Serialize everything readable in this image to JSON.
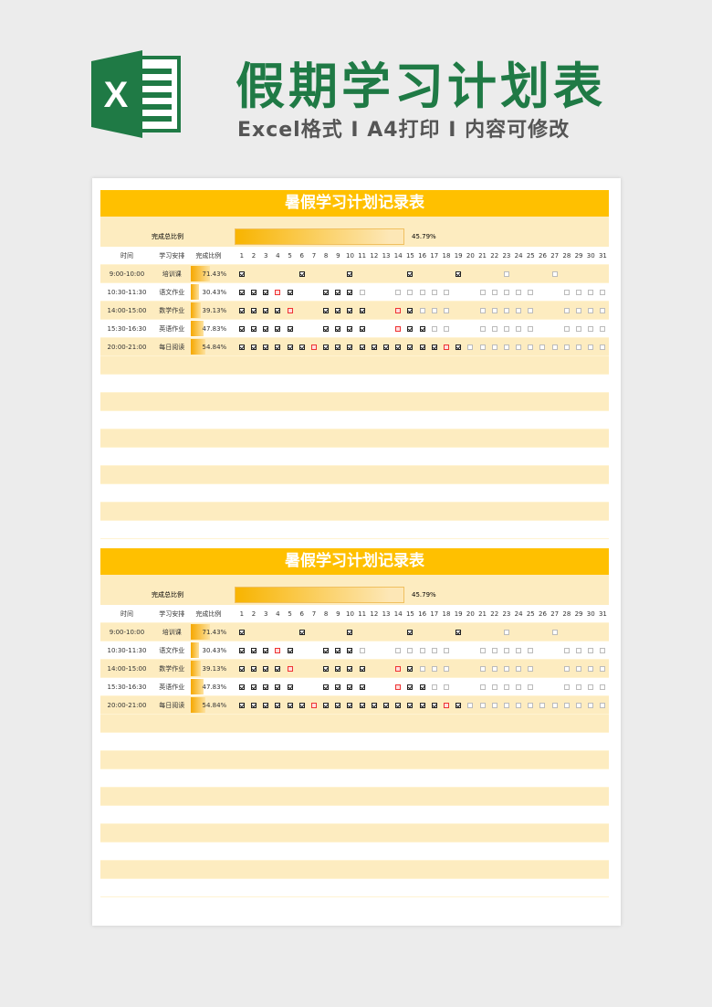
{
  "header": {
    "title": "假期学习计划表",
    "subtitle": "Excel格式 I A4打印 I 内容可修改",
    "logo_text": "X"
  },
  "table": {
    "title": "暑假学习计划记录表",
    "total_label": "完成总比例",
    "total_value": "45.79%",
    "total_fraction": 0.4579,
    "col_time": "时间",
    "col_subject": "学习安排",
    "col_ratio": "完成比例",
    "days": [
      "1",
      "2",
      "3",
      "4",
      "5",
      "6",
      "7",
      "8",
      "9",
      "10",
      "11",
      "12",
      "13",
      "14",
      "15",
      "16",
      "17",
      "18",
      "19",
      "20",
      "21",
      "22",
      "23",
      "24",
      "25",
      "26",
      "27",
      "28",
      "29",
      "30",
      "31"
    ],
    "legend": {
      "v": "checked",
      "x": "missed",
      "o": "unchecked"
    },
    "rows": [
      {
        "time": "9:00-10:00",
        "subject": "培训课",
        "ratio": "71.43%",
        "fraction": 0.7143,
        "marks": "v    v   v    v   v   o   o    "
      },
      {
        "time": "10:30-11:30",
        "subject": "语文作业",
        "ratio": "30.43%",
        "fraction": 0.3043,
        "marks": "vvvxv  vvvo  ooooo  ooooo  oooo"
      },
      {
        "time": "14:00-15:00",
        "subject": "数学作业",
        "ratio": "39.13%",
        "fraction": 0.3913,
        "marks": "vvvvx  vvvv  xvooo  ooooo  oooo"
      },
      {
        "time": "15:30-16:30",
        "subject": "英语作业",
        "ratio": "47.83%",
        "fraction": 0.4783,
        "marks": "vvvvv  vvvv  xvvoo  ooooo  oooo"
      },
      {
        "time": "20:00-21:00",
        "subject": "每日阅读",
        "ratio": "54.84%",
        "fraction": 0.5484,
        "marks": "vvvvvvxvvvvvvvvvvxvoooooooooooo"
      }
    ]
  },
  "colors": {
    "accent": "#ffc000",
    "brand": "#1f7a45",
    "row_alt": "#fdecc0"
  }
}
